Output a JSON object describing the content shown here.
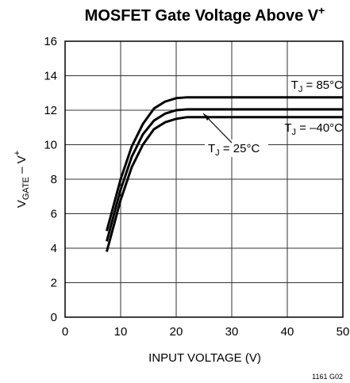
{
  "chart_data": {
    "type": "line",
    "title": {
      "main": "MOSFET Gate Voltage Above V",
      "sup": "+"
    },
    "x_label": "INPUT VOLTAGE (V)",
    "y_label": {
      "v": "V",
      "sub": "GATE",
      "mid": " – V",
      "sup": "+"
    },
    "footnote": "1161 G02",
    "xlim": [
      0,
      50
    ],
    "xticks": [
      0,
      10,
      20,
      30,
      40,
      50
    ],
    "ylim": [
      0,
      16
    ],
    "yticks": [
      0,
      2,
      4,
      6,
      8,
      10,
      12,
      14,
      16
    ],
    "grid": true,
    "series": [
      {
        "name_parts": {
          "t": "T",
          "sub": "J",
          "rest": " = 85°C"
        },
        "color": "#000000",
        "x": [
          7.5,
          10,
          12,
          14,
          16,
          18,
          20,
          22,
          50
        ],
        "values": [
          5,
          8,
          9.9,
          11.2,
          12.1,
          12.5,
          12.7,
          12.75,
          12.75
        ]
      },
      {
        "name_parts": {
          "t": "T",
          "sub": "J",
          "rest": " = 25°C"
        },
        "color": "#000000",
        "x": [
          7.5,
          10,
          12,
          14,
          16,
          18,
          20,
          22,
          50
        ],
        "values": [
          4.4,
          7.4,
          9.3,
          10.6,
          11.4,
          11.8,
          12,
          12.05,
          12.05
        ]
      },
      {
        "name_parts": {
          "t": "T",
          "sub": "J",
          "rest": " = –40°C"
        },
        "color": "#000000",
        "x": [
          7.5,
          10,
          12,
          14,
          16,
          18,
          20,
          22,
          50
        ],
        "values": [
          3.8,
          6.8,
          8.7,
          10,
          10.9,
          11.3,
          11.5,
          11.6,
          11.6
        ]
      }
    ]
  }
}
